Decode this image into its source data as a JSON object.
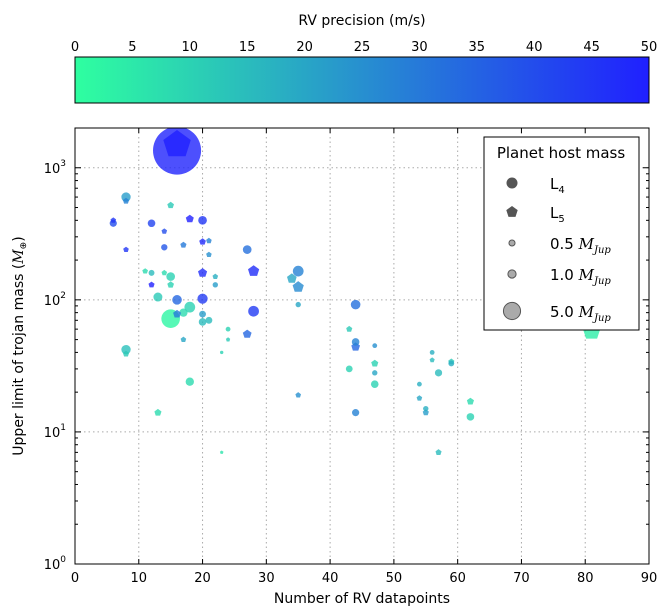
{
  "chart_data": {
    "type": "scatter",
    "xlabel": "Number of RV datapoints",
    "ylabel": "Upper limit of trojan mass (",
    "ylabel_unit": "M",
    "ylabel_unit_sub": "⊕",
    "ylabel_close": ")",
    "xlim": [
      0,
      90
    ],
    "ylim": [
      1,
      2000
    ],
    "yscale": "log",
    "grid": true,
    "x_ticks": [
      "0",
      "10",
      "20",
      "30",
      "40",
      "50",
      "60",
      "70",
      "80",
      "90"
    ],
    "y_ticks": [
      {
        "base": "10",
        "exp": "0"
      },
      {
        "base": "10",
        "exp": "1"
      },
      {
        "base": "10",
        "exp": "2"
      },
      {
        "base": "10",
        "exp": "3"
      }
    ],
    "colorbar": {
      "label": "RV precision (m/s)",
      "range": [
        0,
        50
      ],
      "ticks": [
        "0",
        "5",
        "10",
        "15",
        "20",
        "25",
        "30",
        "35",
        "40",
        "45",
        "50"
      ],
      "color_low": "#2effa0",
      "color_high": "#2020ff"
    },
    "legend": {
      "title": "Planet host mass",
      "position": "upper right",
      "entries": [
        {
          "marker": "circle",
          "label": "L",
          "sub": "4"
        },
        {
          "marker": "pentagon",
          "label": "L",
          "sub": "5"
        },
        {
          "marker": "size",
          "mass": 0.5,
          "label": "0.5 ",
          "unit": "M",
          "unit_sub": "Jup"
        },
        {
          "marker": "size",
          "mass": 1.0,
          "label": "1.0 ",
          "unit": "M",
          "unit_sub": "Jup"
        },
        {
          "marker": "size",
          "mass": 5.0,
          "label": "5.0 ",
          "unit": "M",
          "unit_sub": "Jup"
        }
      ]
    },
    "points": [
      {
        "x": 16,
        "y": 1350,
        "prec": 49,
        "mass": 40,
        "shape": "circle"
      },
      {
        "x": 16,
        "y": 1500,
        "prec": 50,
        "mass": 12,
        "shape": "pentagon"
      },
      {
        "x": 81,
        "y": 58,
        "prec": 4,
        "mass": 5,
        "shape": "pentagon"
      },
      {
        "x": 6,
        "y": 380,
        "prec": 40,
        "mass": 0.9,
        "shape": "circle"
      },
      {
        "x": 6,
        "y": 400,
        "prec": 45,
        "mass": 0.5,
        "shape": "pentagon"
      },
      {
        "x": 8,
        "y": 600,
        "prec": 22,
        "mass": 1.5,
        "shape": "circle"
      },
      {
        "x": 8,
        "y": 560,
        "prec": 28,
        "mass": 0.6,
        "shape": "pentagon"
      },
      {
        "x": 8,
        "y": 240,
        "prec": 45,
        "mass": 0.5,
        "shape": "pentagon"
      },
      {
        "x": 8,
        "y": 42,
        "prec": 14,
        "mass": 1.5,
        "shape": "circle"
      },
      {
        "x": 8,
        "y": 39,
        "prec": 12,
        "mass": 0.6,
        "shape": "pentagon"
      },
      {
        "x": 11,
        "y": 165,
        "prec": 8,
        "mass": 0.5,
        "shape": "pentagon"
      },
      {
        "x": 12,
        "y": 160,
        "prec": 15,
        "mass": 0.6,
        "shape": "circle"
      },
      {
        "x": 12,
        "y": 130,
        "prec": 50,
        "mass": 0.6,
        "shape": "pentagon"
      },
      {
        "x": 12,
        "y": 380,
        "prec": 42,
        "mass": 1.0,
        "shape": "circle"
      },
      {
        "x": 13,
        "y": 105,
        "prec": 12,
        "mass": 1.4,
        "shape": "circle"
      },
      {
        "x": 13,
        "y": 14,
        "prec": 8,
        "mass": 0.8,
        "shape": "pentagon"
      },
      {
        "x": 14,
        "y": 330,
        "prec": 40,
        "mass": 0.5,
        "shape": "pentagon"
      },
      {
        "x": 14,
        "y": 250,
        "prec": 38,
        "mass": 0.7,
        "shape": "circle"
      },
      {
        "x": 14,
        "y": 160,
        "prec": 8,
        "mass": 0.5,
        "shape": "pentagon"
      },
      {
        "x": 15,
        "y": 150,
        "prec": 10,
        "mass": 1.3,
        "shape": "circle"
      },
      {
        "x": 15,
        "y": 130,
        "prec": 10,
        "mass": 0.7,
        "shape": "pentagon"
      },
      {
        "x": 15,
        "y": 520,
        "prec": 12,
        "mass": 0.7,
        "shape": "pentagon"
      },
      {
        "x": 15,
        "y": 72,
        "prec": 2,
        "mass": 6,
        "shape": "circle"
      },
      {
        "x": 16,
        "y": 100,
        "prec": 34,
        "mass": 1.6,
        "shape": "circle"
      },
      {
        "x": 16,
        "y": 78,
        "prec": 30,
        "mass": 1.0,
        "shape": "pentagon"
      },
      {
        "x": 17,
        "y": 260,
        "prec": 30,
        "mass": 0.6,
        "shape": "pentagon"
      },
      {
        "x": 17,
        "y": 50,
        "prec": 20,
        "mass": 0.5,
        "shape": "pentagon"
      },
      {
        "x": 17,
        "y": 80,
        "prec": 8,
        "mass": 1.2,
        "shape": "circle"
      },
      {
        "x": 18,
        "y": 410,
        "prec": 50,
        "mass": 1.0,
        "shape": "pentagon"
      },
      {
        "x": 18,
        "y": 88,
        "prec": 10,
        "mass": 2.0,
        "shape": "circle"
      },
      {
        "x": 18,
        "y": 24,
        "prec": 8,
        "mass": 1.2,
        "shape": "circle"
      },
      {
        "x": 20,
        "y": 400,
        "prec": 45,
        "mass": 1.3,
        "shape": "circle"
      },
      {
        "x": 20,
        "y": 275,
        "prec": 48,
        "mass": 0.7,
        "shape": "pentagon"
      },
      {
        "x": 20,
        "y": 160,
        "prec": 47,
        "mass": 1.3,
        "shape": "pentagon"
      },
      {
        "x": 20,
        "y": 102,
        "prec": 44,
        "mass": 1.8,
        "shape": "circle"
      },
      {
        "x": 20,
        "y": 78,
        "prec": 22,
        "mass": 0.8,
        "shape": "circle"
      },
      {
        "x": 20,
        "y": 68,
        "prec": 15,
        "mass": 1.0,
        "shape": "circle"
      },
      {
        "x": 21,
        "y": 280,
        "prec": 28,
        "mass": 0.5,
        "shape": "pentagon"
      },
      {
        "x": 21,
        "y": 220,
        "prec": 25,
        "mass": 0.5,
        "shape": "pentagon"
      },
      {
        "x": 21,
        "y": 70,
        "prec": 15,
        "mass": 0.8,
        "shape": "circle"
      },
      {
        "x": 22,
        "y": 150,
        "prec": 18,
        "mass": 0.5,
        "shape": "pentagon"
      },
      {
        "x": 22,
        "y": 130,
        "prec": 22,
        "mass": 0.5,
        "shape": "circle"
      },
      {
        "x": 23,
        "y": 40,
        "prec": 10,
        "mass": 0.2,
        "shape": "circle"
      },
      {
        "x": 23,
        "y": 7,
        "prec": 6,
        "mass": 0.2,
        "shape": "pentagon"
      },
      {
        "x": 24,
        "y": 60,
        "prec": 10,
        "mass": 0.4,
        "shape": "circle"
      },
      {
        "x": 24,
        "y": 50,
        "prec": 12,
        "mass": 0.3,
        "shape": "pentagon"
      },
      {
        "x": 27,
        "y": 240,
        "prec": 32,
        "mass": 1.3,
        "shape": "circle"
      },
      {
        "x": 27,
        "y": 55,
        "prec": 34,
        "mass": 1.2,
        "shape": "pentagon"
      },
      {
        "x": 28,
        "y": 165,
        "prec": 47,
        "mass": 2.0,
        "shape": "pentagon"
      },
      {
        "x": 28,
        "y": 82,
        "prec": 44,
        "mass": 2.0,
        "shape": "circle"
      },
      {
        "x": 34,
        "y": 145,
        "prec": 20,
        "mass": 1.5,
        "shape": "pentagon"
      },
      {
        "x": 35,
        "y": 165,
        "prec": 28,
        "mass": 2.0,
        "shape": "circle"
      },
      {
        "x": 35,
        "y": 125,
        "prec": 26,
        "mass": 2.0,
        "shape": "pentagon"
      },
      {
        "x": 35,
        "y": 92,
        "prec": 20,
        "mass": 0.5,
        "shape": "circle"
      },
      {
        "x": 35,
        "y": 19,
        "prec": 25,
        "mass": 0.5,
        "shape": "pentagon"
      },
      {
        "x": 43,
        "y": 60,
        "prec": 12,
        "mass": 0.6,
        "shape": "pentagon"
      },
      {
        "x": 43,
        "y": 30,
        "prec": 10,
        "mass": 0.8,
        "shape": "circle"
      },
      {
        "x": 44,
        "y": 92,
        "prec": 32,
        "mass": 1.6,
        "shape": "circle"
      },
      {
        "x": 44,
        "y": 48,
        "prec": 28,
        "mass": 1.0,
        "shape": "circle"
      },
      {
        "x": 44,
        "y": 44,
        "prec": 34,
        "mass": 1.2,
        "shape": "pentagon"
      },
      {
        "x": 44,
        "y": 14,
        "prec": 28,
        "mass": 0.9,
        "shape": "circle"
      },
      {
        "x": 47,
        "y": 45,
        "prec": 25,
        "mass": 0.4,
        "shape": "circle"
      },
      {
        "x": 47,
        "y": 33,
        "prec": 10,
        "mass": 0.8,
        "shape": "pentagon"
      },
      {
        "x": 47,
        "y": 28,
        "prec": 20,
        "mass": 0.5,
        "shape": "circle"
      },
      {
        "x": 47,
        "y": 23,
        "prec": 10,
        "mass": 1.0,
        "shape": "circle"
      },
      {
        "x": 54,
        "y": 23,
        "prec": 18,
        "mass": 0.4,
        "shape": "circle"
      },
      {
        "x": 54,
        "y": 18,
        "prec": 20,
        "mass": 0.5,
        "shape": "pentagon"
      },
      {
        "x": 55,
        "y": 15,
        "prec": 18,
        "mass": 0.5,
        "shape": "circle"
      },
      {
        "x": 55,
        "y": 14,
        "prec": 22,
        "mass": 0.6,
        "shape": "pentagon"
      },
      {
        "x": 56,
        "y": 40,
        "prec": 18,
        "mass": 0.4,
        "shape": "circle"
      },
      {
        "x": 56,
        "y": 35,
        "prec": 15,
        "mass": 0.4,
        "shape": "pentagon"
      },
      {
        "x": 57,
        "y": 28,
        "prec": 15,
        "mass": 0.9,
        "shape": "circle"
      },
      {
        "x": 57,
        "y": 7,
        "prec": 15,
        "mass": 0.6,
        "shape": "pentagon"
      },
      {
        "x": 59,
        "y": 34,
        "prec": 12,
        "mass": 0.6,
        "shape": "pentagon"
      },
      {
        "x": 59,
        "y": 33,
        "prec": 18,
        "mass": 0.6,
        "shape": "circle"
      },
      {
        "x": 62,
        "y": 17,
        "prec": 8,
        "mass": 0.8,
        "shape": "pentagon"
      },
      {
        "x": 62,
        "y": 13,
        "prec": 10,
        "mass": 1.0,
        "shape": "circle"
      }
    ]
  }
}
